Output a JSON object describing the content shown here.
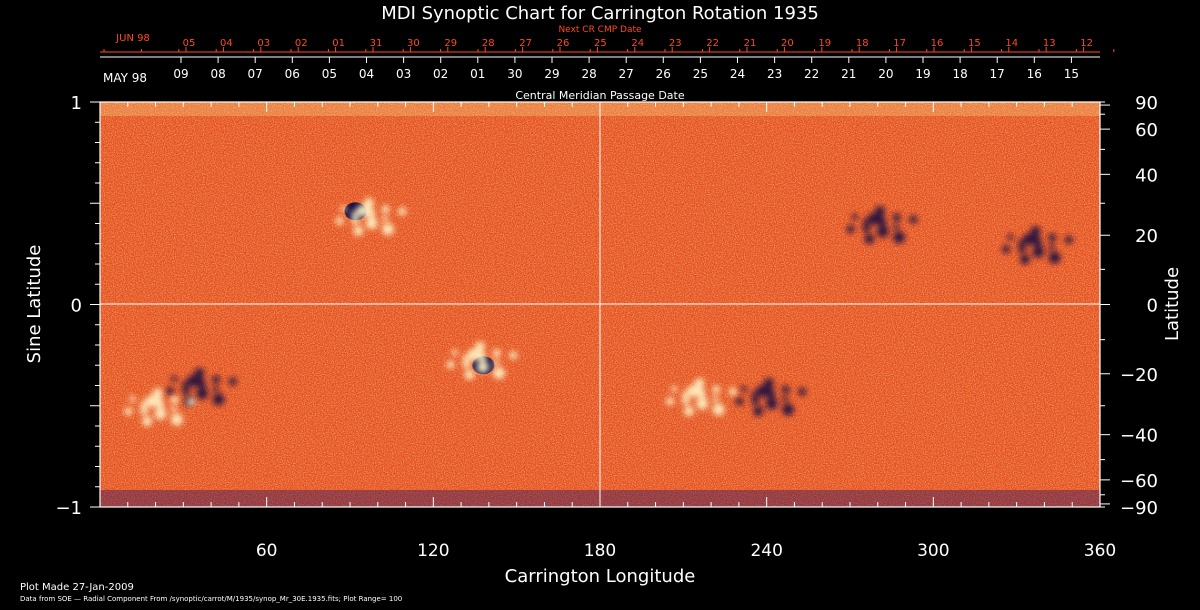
{
  "chart_data": {
    "type": "heatmap",
    "title": "MDI Synoptic Chart for Carrington Rotation 1935",
    "xlabel": "Carrington Longitude",
    "ylabel": "Sine Latitude",
    "y2label": "Latitude",
    "xlim": [
      0,
      360
    ],
    "ylim": [
      -1,
      1
    ],
    "x_ticks": [
      "60",
      "120",
      "180",
      "240",
      "300",
      "360"
    ],
    "x_tick_values": [
      60,
      120,
      180,
      240,
      300,
      360
    ],
    "y_ticks": [
      "1",
      "0",
      "−1"
    ],
    "y_tick_values": [
      1,
      0,
      -1
    ],
    "latitude_ticks": [
      "90",
      "60",
      "40",
      "20",
      "0",
      "−20",
      "−40",
      "−60",
      "−90"
    ],
    "latitude_tick_values": [
      90,
      60,
      40,
      20,
      0,
      -20,
      -40,
      -60,
      -90
    ],
    "top_axis_orange_label": "Next CR CMP Date",
    "top_axis_orange_month": "JUN 98",
    "top_axis_orange_days": [
      "05",
      "04",
      "03",
      "02",
      "01",
      "31",
      "30",
      "29",
      "28",
      "27",
      "26",
      "25",
      "24",
      "23",
      "22",
      "21",
      "20",
      "19",
      "18",
      "17",
      "16",
      "15",
      "14",
      "13",
      "12"
    ],
    "top_axis_white_month": "MAY 98",
    "top_axis_white_days": [
      "09",
      "08",
      "07",
      "06",
      "05",
      "04",
      "03",
      "02",
      "01",
      "30",
      "29",
      "28",
      "27",
      "26",
      "25",
      "24",
      "23",
      "22",
      "21",
      "20",
      "19",
      "18",
      "17",
      "16",
      "15"
    ],
    "top_axis_white_label": "Central Meridian Passage Date",
    "colors": {
      "background": "#e8501a",
      "positive": "#fff6c8",
      "negative": "#1a1040",
      "orange_text": "#ff4a1c"
    },
    "features": [
      {
        "name": "negative spot",
        "lon": 92,
        "sinlat": 0.46
      },
      {
        "name": "positive plage",
        "lon": 96,
        "sinlat": 0.44
      },
      {
        "name": "negative spot",
        "lon": 138,
        "sinlat": -0.3
      },
      {
        "name": "positive plage",
        "lon": 136,
        "sinlat": -0.27
      },
      {
        "name": "negative cluster",
        "lon": 336,
        "sinlat": 0.3
      },
      {
        "name": "negative cluster",
        "lon": 280,
        "sinlat": 0.4
      },
      {
        "name": "negative cluster",
        "lon": 240,
        "sinlat": -0.45
      },
      {
        "name": "positive plage",
        "lon": 215,
        "sinlat": -0.45
      },
      {
        "name": "negative cluster",
        "lon": 35,
        "sinlat": -0.4
      },
      {
        "name": "positive plage",
        "lon": 20,
        "sinlat": -0.5
      }
    ]
  },
  "footer": {
    "plot_made": "Plot Made 27-Jan-2009",
    "data_from": "Data from SOE — Radial Component From /synoptic/carrot/M/1935/synop_Mr_30E.1935.fits; Plot Range= 100"
  }
}
